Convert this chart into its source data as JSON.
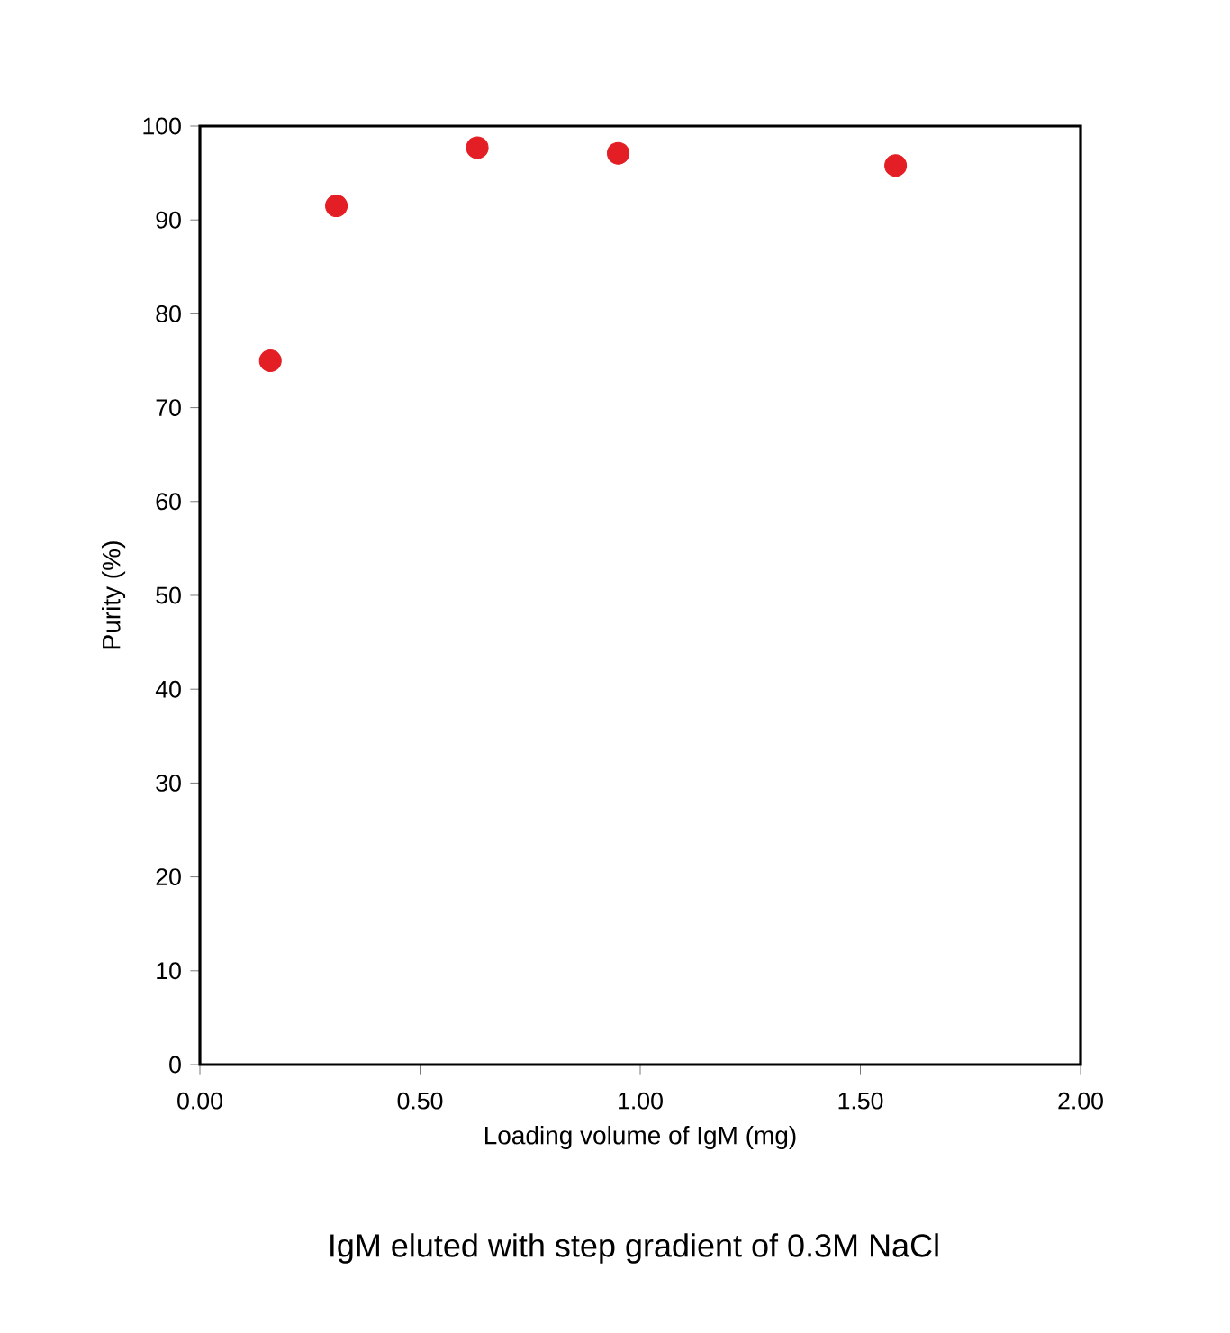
{
  "chart_data": {
    "type": "scatter",
    "xlabel": "Loading volume of IgM (mg)",
    "ylabel": "Purity (%)",
    "annotations": [
      "IgM eluted with step gradient of 0.3M NaCl"
    ],
    "x": [
      0.16,
      0.31,
      0.63,
      0.95,
      1.58
    ],
    "values": [
      75,
      91.5,
      97.7,
      97.1,
      95.8
    ],
    "color": "#e31e24",
    "marker": "circle",
    "xlim": [
      0,
      2
    ],
    "ylim": [
      0,
      100
    ],
    "xticks": [
      {
        "value": 0,
        "label": "0.00"
      },
      {
        "value": 0.5,
        "label": "0.50"
      },
      {
        "value": 1,
        "label": "1.00"
      },
      {
        "value": 1.5,
        "label": "1.50"
      },
      {
        "value": 2,
        "label": "2.00"
      }
    ],
    "yticks": [
      0,
      10,
      20,
      30,
      40,
      50,
      60,
      70,
      80,
      90,
      100
    ]
  }
}
